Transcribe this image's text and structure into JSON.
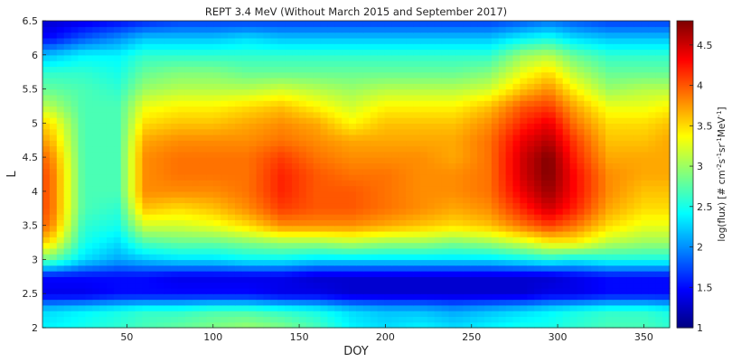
{
  "chart_data": {
    "type": "heatmap",
    "title": "REPT 3.4 MeV (Without March 2015 and September 2017)",
    "xlabel": "DOY",
    "ylabel": "L",
    "colorbar_label": "log(flux) [# cm^-2 s^-1 sr^-1 MeV^-1]",
    "xlim": [
      1,
      365
    ],
    "ylim": [
      2,
      6.5
    ],
    "clim": [
      1,
      4.8
    ],
    "colormap": "jet",
    "x_ticks": [
      50,
      100,
      150,
      200,
      250,
      300,
      350
    ],
    "y_ticks": [
      2,
      2.5,
      3,
      3.5,
      4,
      4.5,
      5,
      5.5,
      6,
      6.5
    ],
    "colorbar_ticks": [
      1,
      1.5,
      2,
      2.5,
      3,
      3.5,
      4,
      4.5
    ],
    "x": [
      5,
      25,
      45,
      60,
      80,
      100,
      120,
      140,
      160,
      180,
      200,
      220,
      240,
      260,
      280,
      295,
      310,
      330,
      350,
      365
    ],
    "y": [
      2.0,
      2.25,
      2.5,
      2.75,
      3.0,
      3.25,
      3.5,
      3.75,
      4.0,
      4.25,
      4.5,
      4.75,
      5.0,
      5.25,
      5.5,
      5.75,
      6.0,
      6.25,
      6.5
    ],
    "z": [
      [
        2.4,
        2.5,
        2.6,
        2.7,
        2.8,
        2.9,
        3.0,
        2.9,
        2.7,
        2.4,
        2.3,
        2.4,
        2.3,
        2.4,
        2.5,
        2.5,
        2.6,
        2.7,
        2.7,
        2.6
      ],
      [
        2.3,
        2.4,
        2.5,
        2.6,
        2.6,
        2.7,
        2.7,
        2.6,
        2.5,
        2.3,
        2.2,
        2.2,
        2.1,
        2.2,
        2.3,
        2.4,
        2.5,
        2.6,
        2.6,
        2.5
      ],
      [
        1.4,
        1.4,
        1.5,
        1.5,
        1.5,
        1.5,
        1.5,
        1.4,
        1.4,
        1.3,
        1.3,
        1.3,
        1.3,
        1.3,
        1.3,
        1.4,
        1.4,
        1.5,
        1.5,
        1.5
      ],
      [
        1.5,
        1.5,
        1.5,
        1.5,
        1.4,
        1.4,
        1.4,
        1.4,
        1.3,
        1.3,
        1.3,
        1.3,
        1.3,
        1.3,
        1.3,
        1.3,
        1.4,
        1.5,
        1.5,
        1.5
      ],
      [
        2.8,
        2.3,
        2.1,
        2.2,
        2.3,
        2.3,
        2.4,
        2.4,
        2.3,
        2.3,
        2.3,
        2.3,
        2.3,
        2.3,
        2.4,
        2.5,
        2.4,
        2.5,
        2.5,
        2.5
      ],
      [
        3.5,
        2.5,
        2.3,
        2.7,
        2.8,
        2.8,
        2.9,
        3.0,
        3.0,
        3.1,
        3.0,
        3.0,
        2.9,
        3.0,
        3.2,
        3.4,
        3.4,
        3.1,
        3.0,
        3.0
      ],
      [
        3.9,
        2.6,
        2.5,
        3.2,
        3.2,
        3.3,
        3.5,
        3.8,
        3.8,
        3.8,
        3.7,
        3.6,
        3.5,
        3.6,
        3.9,
        4.1,
        3.9,
        3.5,
        3.3,
        3.3
      ],
      [
        4.0,
        2.7,
        2.6,
        3.6,
        3.5,
        3.6,
        3.8,
        4.1,
        4.0,
        4.0,
        3.9,
        3.8,
        3.7,
        3.8,
        4.2,
        4.5,
        4.2,
        3.7,
        3.5,
        3.5
      ],
      [
        4.0,
        2.7,
        2.7,
        3.8,
        3.8,
        3.8,
        3.9,
        4.2,
        4.0,
        4.0,
        3.9,
        3.8,
        3.8,
        3.9,
        4.4,
        4.7,
        4.3,
        3.8,
        3.6,
        3.6
      ],
      [
        4.0,
        2.7,
        2.7,
        3.8,
        3.9,
        3.9,
        3.9,
        4.2,
        4.0,
        3.9,
        3.9,
        3.8,
        3.8,
        3.9,
        4.5,
        4.8,
        4.3,
        3.8,
        3.7,
        3.7
      ],
      [
        3.9,
        2.7,
        2.7,
        3.8,
        3.9,
        3.9,
        3.9,
        4.1,
        3.9,
        3.8,
        3.8,
        3.8,
        3.7,
        3.9,
        4.5,
        4.8,
        4.2,
        3.7,
        3.7,
        3.7
      ],
      [
        3.7,
        2.7,
        2.7,
        3.7,
        3.8,
        3.8,
        3.8,
        3.9,
        3.8,
        3.7,
        3.7,
        3.7,
        3.7,
        3.9,
        4.4,
        4.6,
        4.1,
        3.6,
        3.6,
        3.7
      ],
      [
        3.5,
        2.7,
        2.7,
        3.5,
        3.6,
        3.6,
        3.7,
        3.8,
        3.7,
        3.4,
        3.6,
        3.6,
        3.6,
        3.8,
        4.2,
        4.4,
        3.9,
        3.5,
        3.5,
        3.6
      ],
      [
        3.1,
        2.7,
        2.7,
        3.3,
        3.4,
        3.4,
        3.5,
        3.6,
        3.4,
        3.2,
        3.4,
        3.4,
        3.4,
        3.6,
        4.0,
        4.1,
        3.7,
        3.3,
        3.3,
        3.4
      ],
      [
        2.8,
        2.7,
        2.6,
        3.0,
        3.1,
        3.1,
        3.1,
        3.2,
        3.1,
        3.0,
        3.1,
        3.1,
        3.1,
        3.2,
        3.6,
        3.8,
        3.4,
        3.0,
        3.1,
        3.1
      ],
      [
        2.6,
        2.6,
        2.5,
        2.8,
        2.9,
        2.9,
        2.8,
        2.8,
        2.8,
        2.8,
        2.8,
        2.8,
        2.8,
        2.9,
        3.3,
        3.5,
        3.1,
        2.8,
        2.8,
        2.8
      ],
      [
        2.2,
        2.4,
        2.4,
        2.6,
        2.6,
        2.6,
        2.6,
        2.6,
        2.6,
        2.6,
        2.6,
        2.6,
        2.6,
        2.6,
        3.0,
        3.1,
        2.8,
        2.6,
        2.6,
        2.6
      ],
      [
        1.5,
        1.8,
        2.0,
        2.2,
        2.2,
        2.2,
        2.3,
        2.2,
        2.2,
        2.2,
        2.2,
        2.2,
        2.2,
        2.2,
        2.4,
        2.5,
        2.3,
        2.2,
        2.2,
        2.2
      ],
      [
        1.3,
        1.4,
        1.5,
        1.6,
        1.7,
        1.7,
        1.7,
        1.7,
        1.7,
        1.7,
        1.7,
        1.7,
        1.7,
        1.7,
        1.8,
        1.9,
        1.8,
        1.7,
        1.7,
        1.7
      ]
    ],
    "grid": false,
    "colorbar_position": "right"
  }
}
